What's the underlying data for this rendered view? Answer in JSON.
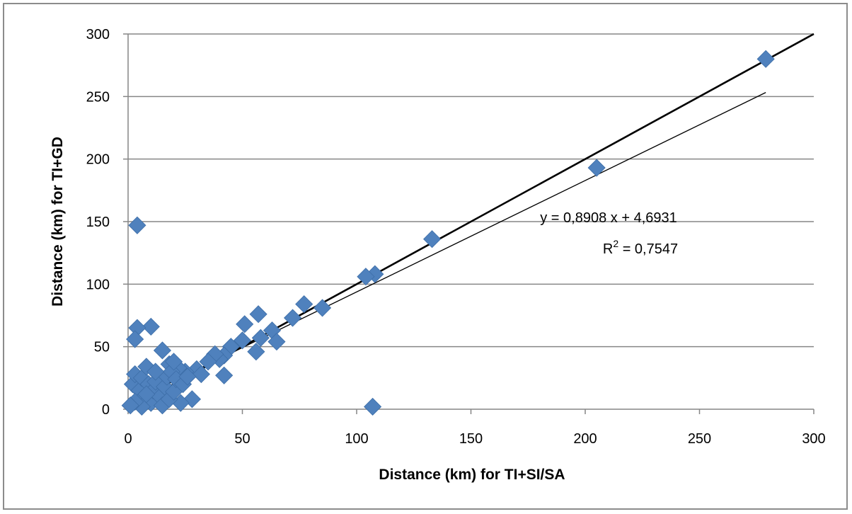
{
  "chart_data": {
    "type": "scatter",
    "title": "",
    "xlabel": "Distance (km) for TI+SI/SA",
    "ylabel": "Distance (km) for TI+GD",
    "xlim": [
      0,
      300
    ],
    "ylim": [
      0,
      300
    ],
    "xticks": [
      0,
      50,
      100,
      150,
      200,
      250,
      300
    ],
    "yticks": [
      0,
      50,
      100,
      150,
      200,
      250,
      300
    ],
    "grid": "horizontal",
    "legend": "none",
    "marker_color": "#4f81bd",
    "points": [
      [
        279,
        280
      ],
      [
        205,
        193
      ],
      [
        133,
        136
      ],
      [
        108,
        108
      ],
      [
        104,
        106
      ],
      [
        107,
        2
      ],
      [
        85,
        81
      ],
      [
        77,
        84
      ],
      [
        72,
        73
      ],
      [
        57,
        76
      ],
      [
        63,
        63
      ],
      [
        65,
        54
      ],
      [
        56,
        46
      ],
      [
        58,
        57
      ],
      [
        51,
        68
      ],
      [
        50,
        55
      ],
      [
        45,
        50
      ],
      [
        42,
        43
      ],
      [
        40,
        40
      ],
      [
        38,
        44
      ],
      [
        42,
        27
      ],
      [
        35,
        38
      ],
      [
        30,
        32
      ],
      [
        32,
        28
      ],
      [
        28,
        8
      ],
      [
        25,
        30
      ],
      [
        22,
        33
      ],
      [
        23,
        5
      ],
      [
        18,
        36
      ],
      [
        15,
        47
      ],
      [
        13,
        28
      ],
      [
        10,
        66
      ],
      [
        4,
        65
      ],
      [
        3,
        56
      ],
      [
        4,
        147
      ],
      [
        2,
        20
      ],
      [
        3,
        28
      ],
      [
        5,
        5
      ],
      [
        5,
        15
      ],
      [
        6,
        25
      ],
      [
        7,
        10
      ],
      [
        8,
        34
      ],
      [
        9,
        20
      ],
      [
        10,
        5
      ],
      [
        11,
        15
      ],
      [
        12,
        22
      ],
      [
        14,
        10
      ],
      [
        15,
        3
      ],
      [
        16,
        18
      ],
      [
        17,
        26
      ],
      [
        18,
        8
      ],
      [
        19,
        30
      ],
      [
        20,
        14
      ],
      [
        21,
        24
      ],
      [
        24,
        20
      ],
      [
        26,
        26
      ],
      [
        6,
        2
      ],
      [
        3,
        6
      ],
      [
        8,
        12
      ],
      [
        12,
        30
      ],
      [
        1,
        3
      ],
      [
        20,
        38
      ]
    ],
    "series": [
      {
        "name": "",
        "type": "line",
        "role": "identity",
        "x": [
          0,
          300
        ],
        "y": [
          0,
          300
        ],
        "color": "#000000",
        "width": "thick"
      },
      {
        "name": "",
        "type": "line",
        "role": "trendline",
        "slope": 0.8908,
        "intercept": 4.6931,
        "x": [
          0,
          279
        ],
        "color": "#000000",
        "width": "thin"
      }
    ],
    "annotations": {
      "equation": "y = 0,8908 x + 4,6931",
      "r2_prefix": "R",
      "r2_sup": "2",
      "r2_value": " = 0,7547"
    }
  }
}
